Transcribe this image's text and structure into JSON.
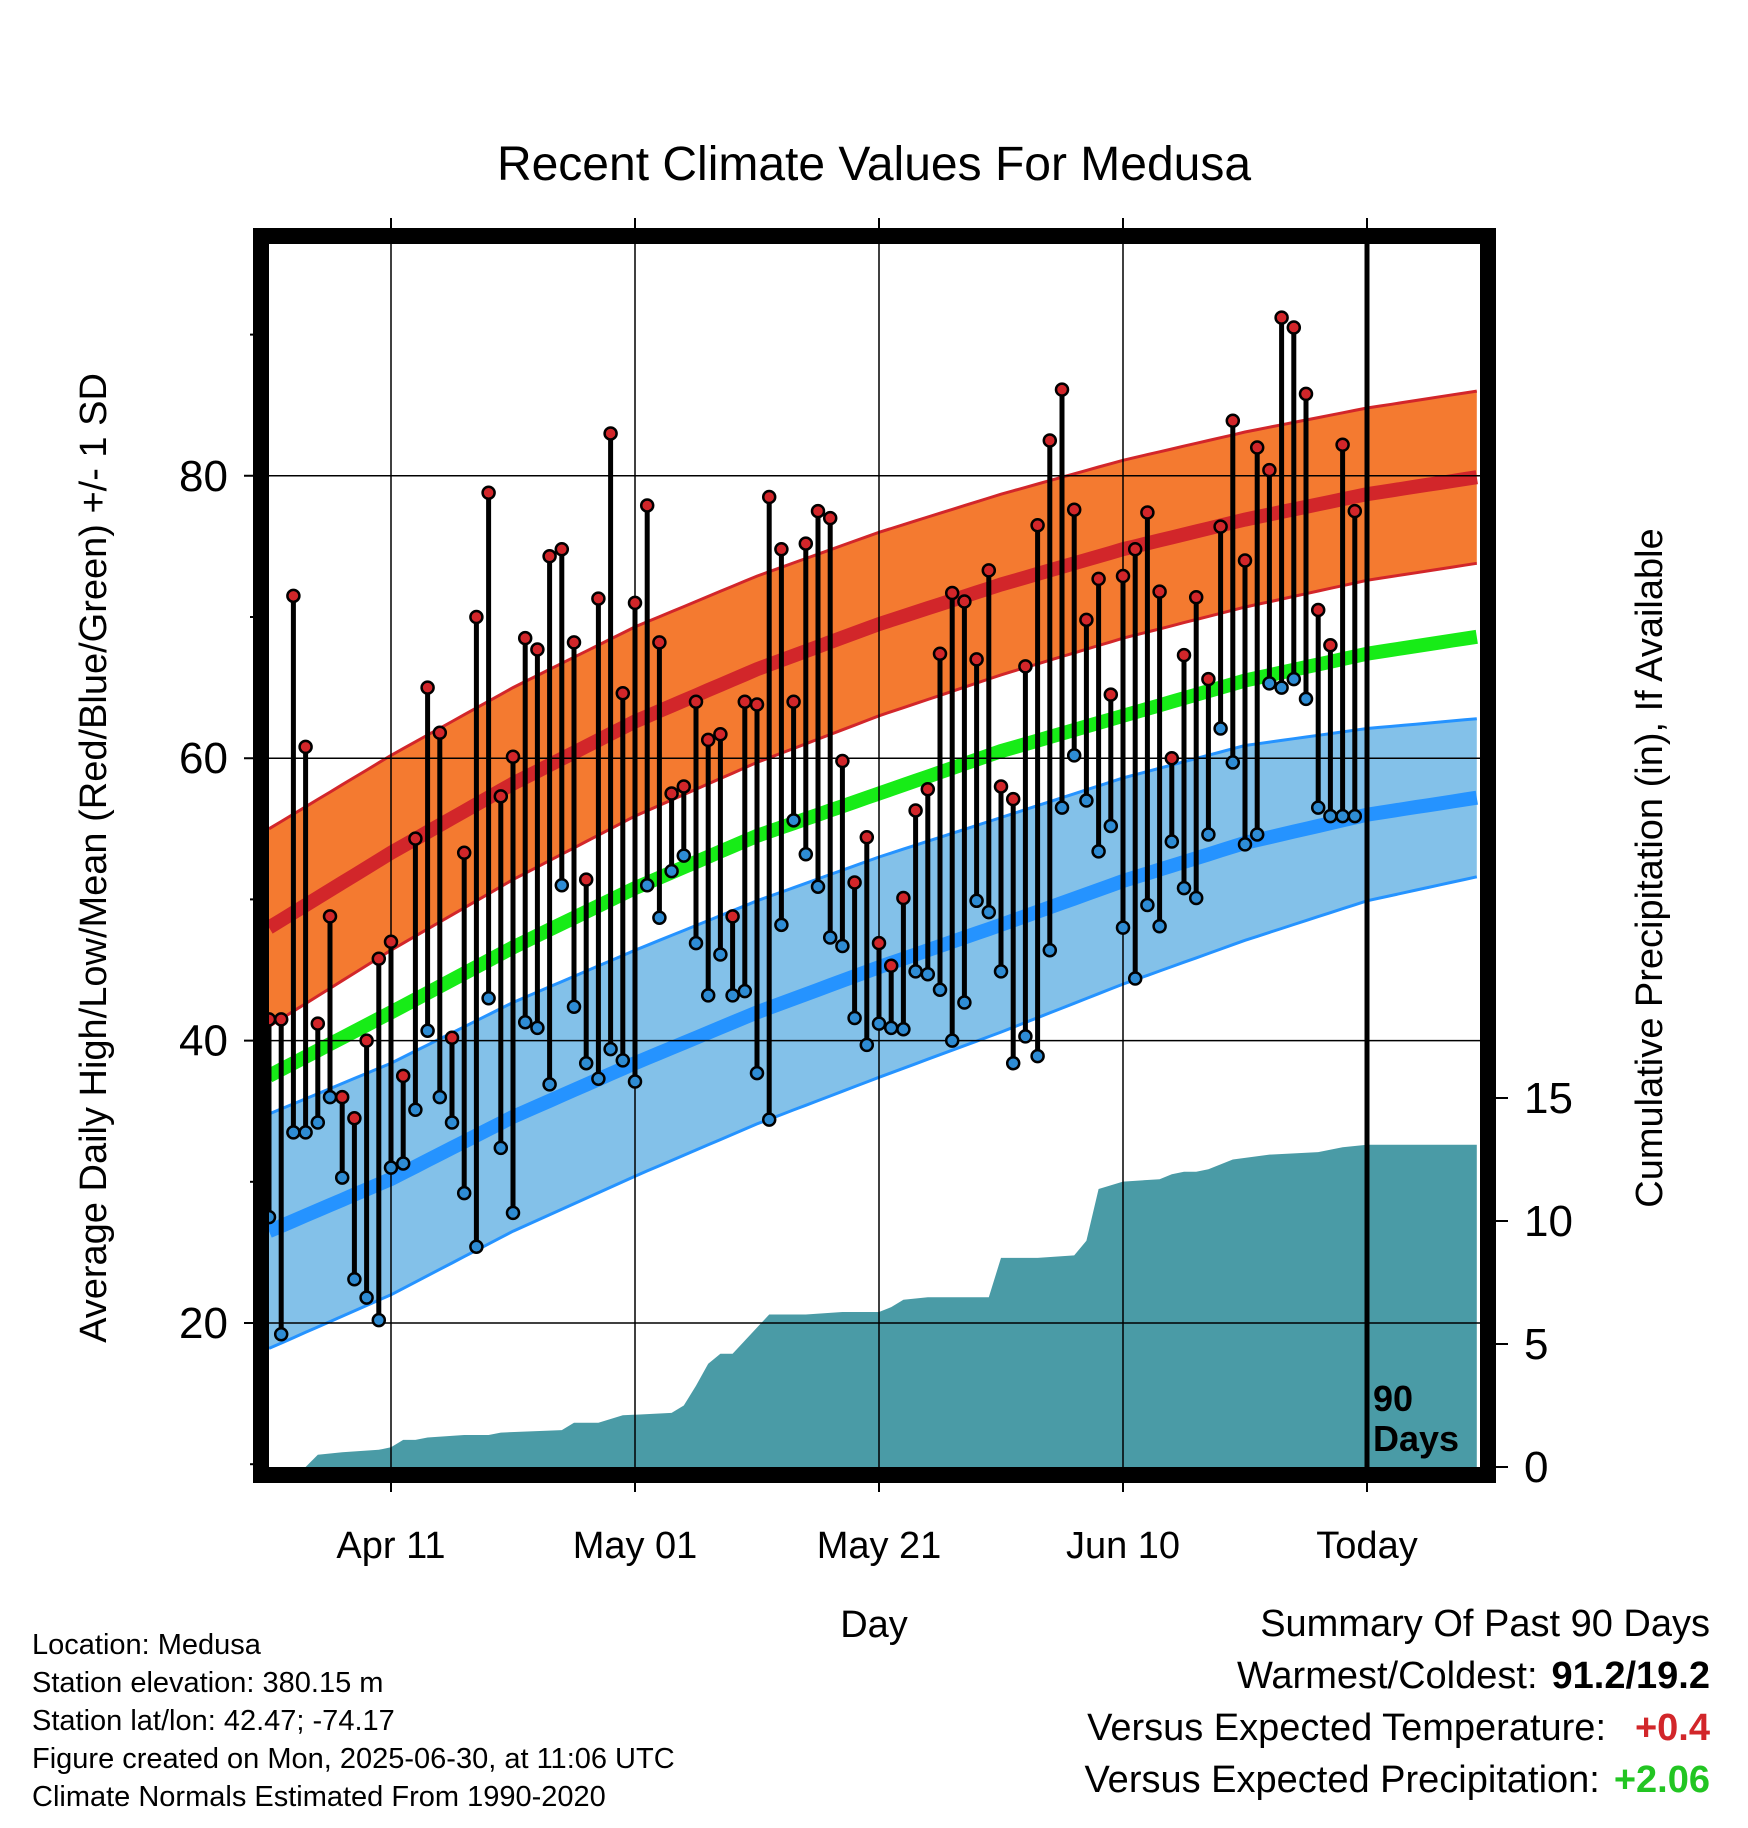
{
  "chart_data": {
    "type": "line",
    "title": "Recent Climate Values For Medusa",
    "xlabel": "Day",
    "ylabel_left": "Average Daily High/Low/Mean (Red/Blue/Green) +/- 1 SD",
    "ylabel_right": "Cumulative Precipitation (in), If Available",
    "x_ticks": [
      {
        "day": 11,
        "label": "Apr 11"
      },
      {
        "day": 31,
        "label": "May 01"
      },
      {
        "day": 51,
        "label": "May 21"
      },
      {
        "day": 71,
        "label": "Jun 10"
      },
      {
        "day": 91,
        "label": "Today"
      }
    ],
    "y_left_ticks": [
      20,
      40,
      60,
      80
    ],
    "y_left_range": [
      9.5,
      97.5
    ],
    "y_right_ticks": [
      0,
      5,
      10,
      15
    ],
    "y_right_range": [
      0,
      15
    ],
    "today_marker": {
      "day": 91,
      "label_line1": "90",
      "label_line2": "Days"
    },
    "normals": {
      "days": [
        1,
        11,
        21,
        31,
        41,
        51,
        61,
        71,
        81,
        91,
        100
      ],
      "high_mean": [
        48,
        53.3,
        58.2,
        62.6,
        66.3,
        69.5,
        72.3,
        74.8,
        76.9,
        78.7,
        79.9
      ],
      "high_sd": [
        7,
        6.9,
        6.8,
        6.7,
        6.6,
        6.5,
        6.4,
        6.3,
        6.2,
        6.1,
        6.1
      ],
      "low_mean": [
        26.5,
        30.2,
        34.6,
        38.4,
        42,
        45.2,
        48.2,
        51.3,
        54,
        56,
        57.2
      ],
      "low_sd": [
        8.3,
        8.2,
        8.1,
        8,
        7.9,
        7.8,
        7.6,
        7.3,
        6.9,
        6.1,
        5.6
      ],
      "mean": [
        37.5,
        42,
        46.6,
        50.8,
        54.5,
        57.5,
        60.5,
        63,
        65.5,
        67.4,
        68.6
      ]
    },
    "daily": {
      "start_day": 1,
      "high": [
        41.5,
        41.5,
        71.5,
        60.8,
        41.2,
        48.8,
        36,
        34.5,
        40,
        45.8,
        47,
        37.5,
        54.3,
        65,
        61.8,
        40.2,
        53.3,
        70,
        78.8,
        57.3,
        60.1,
        68.5,
        67.7,
        74.3,
        74.8,
        68.2,
        51.4,
        71.3,
        83,
        64.6,
        71,
        77.9,
        68.2,
        57.5,
        58,
        64,
        61.3,
        61.7,
        48.8,
        64,
        63.8,
        78.5,
        74.8,
        64,
        75.2,
        77.5,
        77,
        59.8,
        51.2,
        54.4,
        46.9,
        45.3,
        50.1,
        56.3,
        57.8,
        67.4,
        71.7,
        71.1,
        67,
        73.3,
        58,
        57.1,
        66.5,
        76.5,
        82.5,
        86.1,
        77.6,
        69.8,
        72.7,
        64.5,
        72.9,
        74.8,
        77.4,
        71.8,
        60,
        67.3,
        71.4,
        65.6,
        76.4,
        83.9,
        74,
        82,
        80.4,
        91.2,
        90.5,
        85.8,
        70.5,
        68,
        82.2,
        77.5
      ],
      "low": [
        27.5,
        19.2,
        33.5,
        33.5,
        34.2,
        36,
        30.3,
        23.1,
        21.8,
        20.2,
        31,
        31.3,
        35.1,
        40.7,
        36,
        34.2,
        29.2,
        25.4,
        43,
        32.4,
        27.8,
        41.3,
        40.9,
        36.9,
        51,
        42.4,
        38.4,
        37.3,
        39.4,
        38.6,
        37.1,
        51,
        48.7,
        52,
        53.1,
        46.9,
        43.2,
        46.1,
        43.2,
        43.5,
        37.7,
        34.4,
        48.2,
        55.6,
        53.2,
        50.9,
        47.3,
        46.7,
        41.6,
        39.7,
        41.2,
        40.9,
        40.8,
        44.9,
        44.7,
        43.6,
        40,
        42.7,
        49.9,
        49.1,
        44.9,
        38.4,
        40.3,
        38.9,
        46.4,
        56.5,
        60.2,
        57,
        53.4,
        55.2,
        48,
        44.4,
        49.6,
        48.1,
        54.1,
        50.8,
        50.1,
        54.6,
        62.1,
        59.7,
        53.9,
        54.6,
        65.3,
        65,
        65.6,
        64.2,
        56.5,
        55.9,
        55.9,
        55.9
      ]
    },
    "precip_cumulative": {
      "days": [
        1,
        4,
        5,
        7,
        10,
        11,
        12,
        13,
        14,
        17,
        19,
        20,
        25,
        26,
        28,
        30,
        34,
        35,
        36,
        37,
        38,
        39,
        42,
        45,
        48,
        51,
        52,
        53,
        55,
        59,
        60,
        61,
        63,
        64,
        67,
        68,
        69,
        71,
        74,
        75,
        76,
        77,
        78,
        79,
        80,
        83,
        87,
        89,
        91,
        100
      ],
      "values": [
        0,
        0,
        0.5,
        0.6,
        0.7,
        0.8,
        1.1,
        1.1,
        1.2,
        1.3,
        1.3,
        1.4,
        1.5,
        1.8,
        1.8,
        2.1,
        2.2,
        2.5,
        3.3,
        4.2,
        4.6,
        4.6,
        6.2,
        6.2,
        6.3,
        6.3,
        6.5,
        6.8,
        6.9,
        6.9,
        6.9,
        8.5,
        8.5,
        8.5,
        8.6,
        9.2,
        11.3,
        11.6,
        11.7,
        11.9,
        12,
        12,
        12.1,
        12.3,
        12.5,
        12.7,
        12.8,
        13,
        13.1,
        13.1
      ]
    },
    "colors": {
      "high_band": "#f47a30",
      "high_line": "#d2262a",
      "low_band": "#83c1e9",
      "low_line": "#2593ff",
      "mean_line": "#17ec17",
      "precip": "#4a9ba6",
      "high_dot": "#d2262a",
      "low_dot": "#2e8cd4",
      "positive_temp": "#d2262a",
      "positive_precip": "#22c522"
    },
    "grid": true
  },
  "info": {
    "location": "Location: Medusa",
    "elevation": "Station elevation: 380.15 m",
    "latlon": "Station lat/lon: 42.47; -74.17",
    "created": "Figure created on Mon, 2025-06-30, at 11:06 UTC",
    "normals": "Climate Normals Estimated From 1990-2020"
  },
  "summary": {
    "title": "Summary Of Past 90 Days",
    "warmest_label": "Warmest/Coldest:",
    "warmest_value": "91.2/19.2",
    "temp_label": "Versus Expected Temperature:",
    "temp_value": "+0.4",
    "precip_label": "Versus Expected Precipitation:",
    "precip_value": "+2.06"
  }
}
